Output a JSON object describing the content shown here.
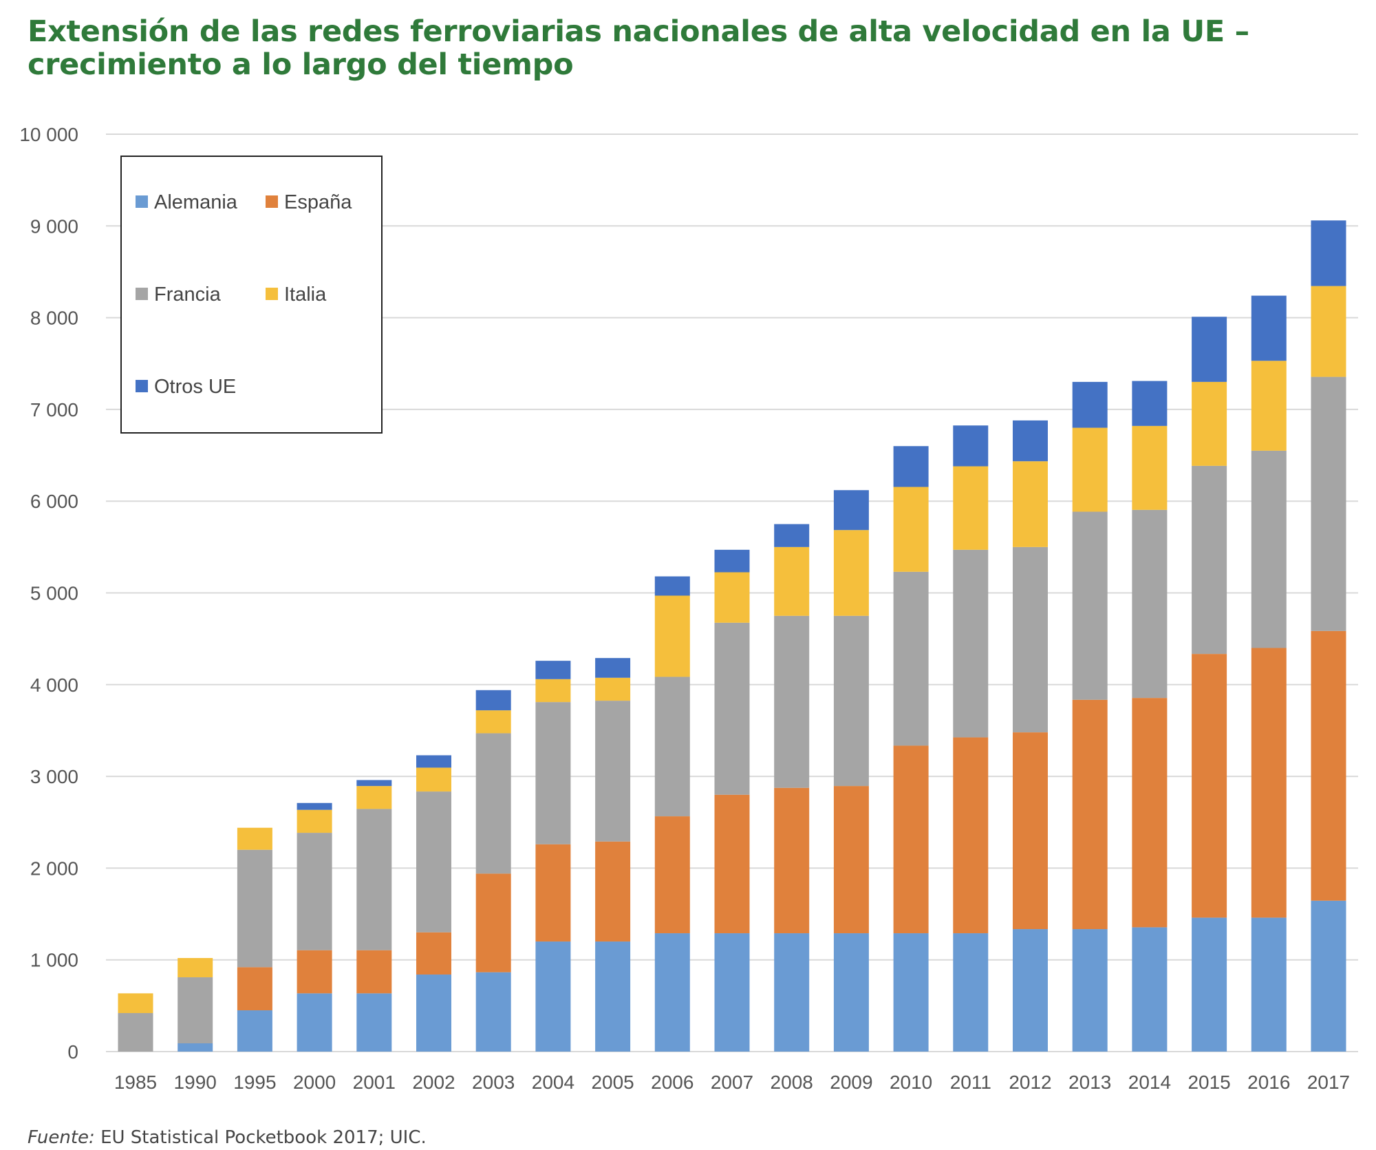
{
  "title": "Extensión de las redes ferroviarias nacionales de alta velocidad en la UE – crecimiento a lo largo del tiempo",
  "source": {
    "label": "Fuente:",
    "text": " EU Statistical Pocketbook 2017; UIC."
  },
  "chart_data": {
    "type": "bar",
    "stacked": true,
    "title": "Extensión de las redes ferroviarias nacionales de alta velocidad en la UE – crecimiento a lo largo del tiempo",
    "xlabel": "",
    "ylabel": "",
    "ylim": [
      0,
      10000
    ],
    "yticks": [
      0,
      1000,
      2000,
      3000,
      4000,
      5000,
      6000,
      7000,
      8000,
      9000,
      10000
    ],
    "ytick_labels": [
      "0",
      "1 000",
      "2 000",
      "3 000",
      "4 000",
      "5 000",
      "6 000",
      "7 000",
      "8 000",
      "9 000",
      "10 000"
    ],
    "grid": true,
    "legend_position": "top-left",
    "categories": [
      "1985",
      "1990",
      "1995",
      "2000",
      "2001",
      "2002",
      "2003",
      "2004",
      "2005",
      "2006",
      "2007",
      "2008",
      "2009",
      "2010",
      "2011",
      "2012",
      "2013",
      "2014",
      "2015",
      "2016",
      "2017"
    ],
    "series": [
      {
        "name": "Alemania",
        "color": "#6a9bd3",
        "values": [
          0,
          90,
          450,
          635,
          635,
          840,
          865,
          1200,
          1200,
          1290,
          1290,
          1290,
          1290,
          1290,
          1290,
          1335,
          1335,
          1355,
          1460,
          1460,
          1645
        ]
      },
      {
        "name": "España",
        "color": "#e0813c",
        "values": [
          0,
          0,
          470,
          470,
          470,
          460,
          1075,
          1060,
          1090,
          1275,
          1510,
          1585,
          1605,
          2045,
          2135,
          2145,
          2500,
          2500,
          2875,
          2940,
          2940
        ]
      },
      {
        "name": "Francia",
        "color": "#a5a5a5",
        "values": [
          420,
          720,
          1280,
          1280,
          1540,
          1535,
          1530,
          1550,
          1535,
          1520,
          1875,
          1875,
          1855,
          1895,
          2045,
          2020,
          2050,
          2050,
          2050,
          2150,
          2770
        ]
      },
      {
        "name": "Italia",
        "color": "#f5bf3c",
        "values": [
          215,
          210,
          240,
          250,
          250,
          260,
          250,
          250,
          250,
          885,
          550,
          750,
          935,
          925,
          910,
          935,
          915,
          915,
          915,
          980,
          990
        ]
      },
      {
        "name": "Otros UE",
        "color": "#4472c4",
        "values": [
          0,
          0,
          0,
          75,
          65,
          135,
          220,
          200,
          215,
          210,
          245,
          250,
          435,
          445,
          445,
          445,
          500,
          490,
          710,
          710,
          715
        ]
      }
    ]
  }
}
